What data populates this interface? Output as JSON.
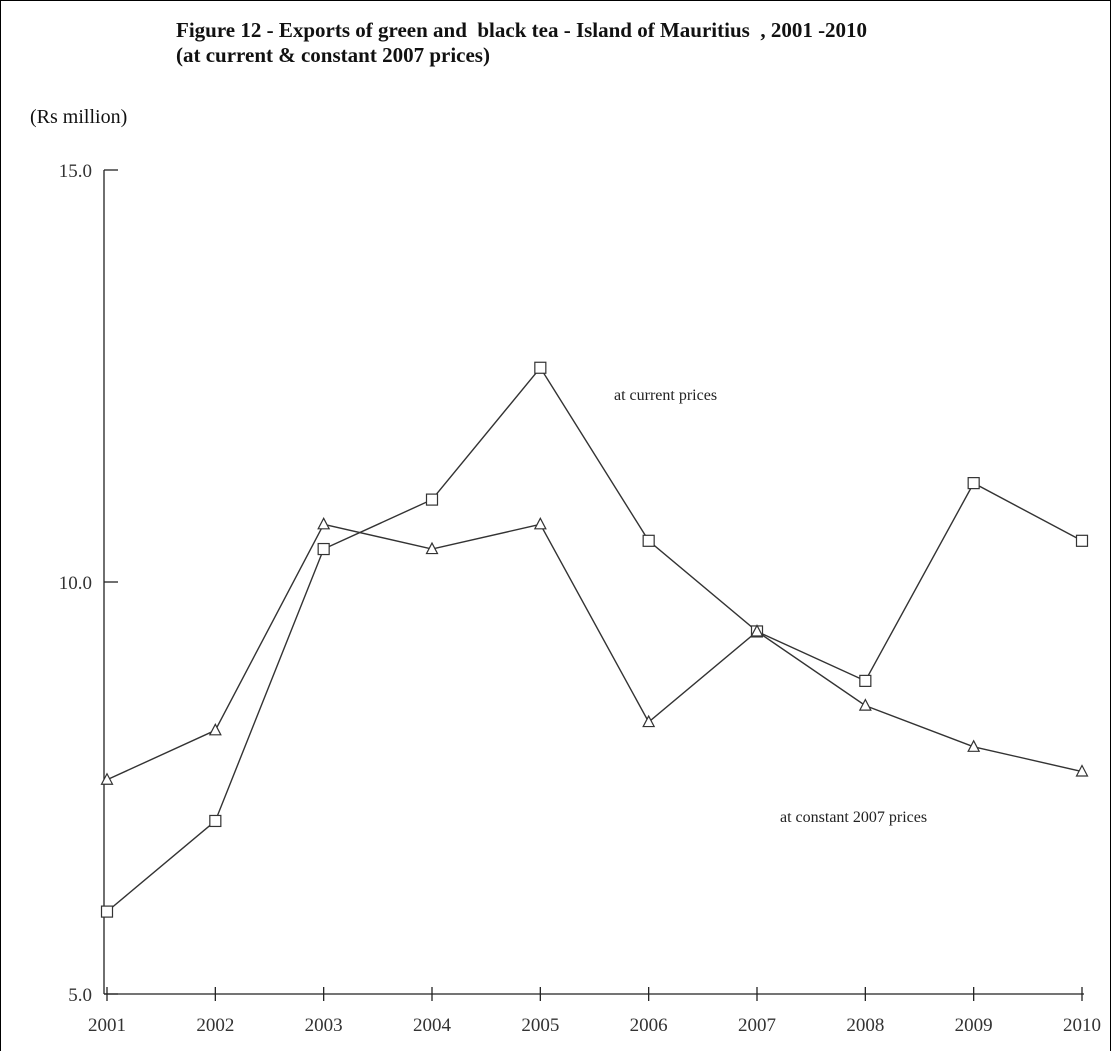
{
  "chart_data": {
    "type": "line",
    "title_lines": [
      "Figure 12 - Exports of green and  black tea - Island of Mauritius  , 2001 -2010",
      "(at current & constant 2007 prices)"
    ],
    "ylabel": "(Rs million)",
    "xlabel": "",
    "ylim": [
      5.0,
      15.0
    ],
    "yticks": [
      "5.0",
      "10.0",
      "15.0"
    ],
    "ytick_values": [
      5.0,
      10.0,
      15.0
    ],
    "categories": [
      "2001",
      "2002",
      "2003",
      "2004",
      "2005",
      "2006",
      "2007",
      "2008",
      "2009",
      "2010"
    ],
    "grid": false,
    "legend": "none",
    "series": [
      {
        "name": "at current prices",
        "marker": "square",
        "values": [
          6.0,
          7.1,
          10.4,
          11.0,
          12.6,
          10.5,
          9.4,
          8.8,
          11.2,
          10.5
        ]
      },
      {
        "name": "at constant 2007 prices",
        "marker": "triangle",
        "values": [
          7.6,
          8.2,
          10.7,
          10.4,
          10.7,
          8.3,
          9.4,
          8.5,
          8.0,
          7.7
        ]
      }
    ]
  }
}
